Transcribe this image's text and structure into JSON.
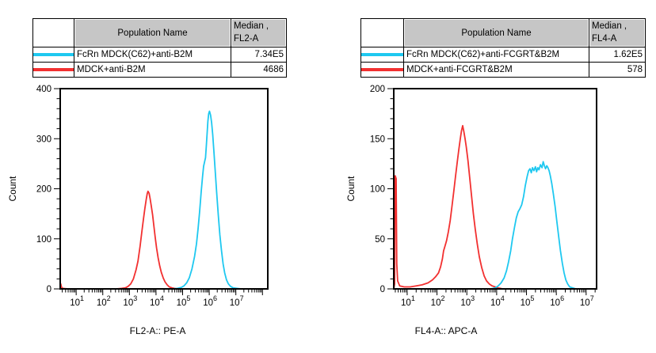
{
  "colors": {
    "cyan": "#1ec8f0",
    "red": "#f23030",
    "axis": "#000000",
    "table_header_bg": "#c6c6c6"
  },
  "panels": [
    {
      "table": {
        "header": {
          "swatch": "",
          "name": "Population Name",
          "median_line1": "Median ,",
          "median_line2": "FL2-A"
        },
        "rows": [
          {
            "color": "cyan",
            "name": "FcRn MDCK(C62)+anti-B2M",
            "median": "7.34E5"
          },
          {
            "color": "red",
            "name": "MDCK+anti-B2M",
            "median": "4686"
          }
        ]
      }
    },
    {
      "table": {
        "header": {
          "swatch": "",
          "name": "Population Name",
          "median_line1": "Median ,",
          "median_line2": "FL4-A"
        },
        "rows": [
          {
            "color": "cyan",
            "name": "FcRn MDCK(C62)+anti-FCGRT&B2M",
            "median": "1.62E5"
          },
          {
            "color": "red",
            "name": "MDCK+anti-FCGRT&B2M",
            "median": "578"
          }
        ]
      }
    }
  ],
  "chart_data": [
    {
      "type": "line",
      "title": "",
      "xlabel": "FL2-A:: PE-A",
      "ylabel": "Count",
      "xscale": "log",
      "xlim_log10": [
        0.4,
        8.2
      ],
      "x_labeled_decades": [
        1,
        2,
        3,
        4,
        5,
        6,
        7
      ],
      "ylim": [
        0,
        400
      ],
      "yticks": [
        0,
        100,
        200,
        300,
        400
      ],
      "y_major_step": 100,
      "y_minor_step": 20,
      "grid": false,
      "legend_position": "table-above",
      "series": [
        {
          "name": "FcRn MDCK(C62)+anti-B2M",
          "color": "cyan",
          "median": "7.34E5",
          "points": [
            [
              4.6,
              0
            ],
            [
              4.8,
              1
            ],
            [
              4.95,
              3
            ],
            [
              5.05,
              6
            ],
            [
              5.15,
              12
            ],
            [
              5.25,
              22
            ],
            [
              5.35,
              40
            ],
            [
              5.45,
              65
            ],
            [
              5.52,
              90
            ],
            [
              5.58,
              120
            ],
            [
              5.64,
              155
            ],
            [
              5.7,
              195
            ],
            [
              5.75,
              225
            ],
            [
              5.79,
              245
            ],
            [
              5.83,
              255
            ],
            [
              5.86,
              262
            ],
            [
              5.89,
              285
            ],
            [
              5.92,
              310
            ],
            [
              5.95,
              335
            ],
            [
              5.98,
              350
            ],
            [
              6.01,
              355
            ],
            [
              6.05,
              347
            ],
            [
              6.09,
              332
            ],
            [
              6.13,
              308
            ],
            [
              6.18,
              272
            ],
            [
              6.23,
              232
            ],
            [
              6.28,
              192
            ],
            [
              6.34,
              148
            ],
            [
              6.4,
              108
            ],
            [
              6.46,
              76
            ],
            [
              6.52,
              50
            ],
            [
              6.58,
              32
            ],
            [
              6.65,
              18
            ],
            [
              6.72,
              10
            ],
            [
              6.8,
              5
            ],
            [
              6.9,
              2
            ],
            [
              7.05,
              1
            ],
            [
              7.2,
              0
            ]
          ]
        },
        {
          "name": "MDCK+anti-B2M",
          "color": "red",
          "median": "4686",
          "points": [
            [
              0.4,
              0
            ],
            [
              0.42,
              10
            ],
            [
              0.45,
              3
            ],
            [
              0.5,
              1
            ],
            [
              0.7,
              0
            ],
            [
              2.5,
              0
            ],
            [
              2.7,
              1
            ],
            [
              2.85,
              2
            ],
            [
              2.95,
              5
            ],
            [
              3.05,
              10
            ],
            [
              3.15,
              20
            ],
            [
              3.25,
              38
            ],
            [
              3.32,
              55
            ],
            [
              3.4,
              85
            ],
            [
              3.47,
              115
            ],
            [
              3.53,
              140
            ],
            [
              3.58,
              160
            ],
            [
              3.63,
              178
            ],
            [
              3.67,
              190
            ],
            [
              3.7,
              195
            ],
            [
              3.74,
              191
            ],
            [
              3.78,
              180
            ],
            [
              3.82,
              166
            ],
            [
              3.87,
              148
            ],
            [
              3.92,
              126
            ],
            [
              3.97,
              103
            ],
            [
              4.02,
              82
            ],
            [
              4.08,
              62
            ],
            [
              4.14,
              46
            ],
            [
              4.2,
              33
            ],
            [
              4.27,
              22
            ],
            [
              4.34,
              14
            ],
            [
              4.42,
              8
            ],
            [
              4.5,
              4
            ],
            [
              4.6,
              2
            ],
            [
              4.7,
              1
            ],
            [
              4.85,
              0
            ]
          ]
        }
      ]
    },
    {
      "type": "line",
      "title": "",
      "xlabel": "FL4-A:: APC-A",
      "ylabel": "Count",
      "xscale": "log",
      "xlim_log10": [
        0.55,
        7.35
      ],
      "x_labeled_decades": [
        1,
        2,
        3,
        4,
        5,
        6,
        7
      ],
      "ylim": [
        0,
        200
      ],
      "yticks": [
        0,
        50,
        100,
        150,
        200
      ],
      "y_major_step": 50,
      "y_minor_step": 10,
      "grid": false,
      "legend_position": "table-above",
      "series": [
        {
          "name": "FcRn MDCK(C62)+anti-FCGRT&B2M",
          "color": "cyan",
          "median": "1.62E5",
          "points": [
            [
              3.8,
              0
            ],
            [
              3.95,
              1
            ],
            [
              4.05,
              3
            ],
            [
              4.15,
              6
            ],
            [
              4.25,
              11
            ],
            [
              4.33,
              18
            ],
            [
              4.4,
              27
            ],
            [
              4.47,
              38
            ],
            [
              4.53,
              50
            ],
            [
              4.6,
              62
            ],
            [
              4.66,
              71
            ],
            [
              4.72,
              77
            ],
            [
              4.78,
              80
            ],
            [
              4.84,
              84
            ],
            [
              4.9,
              92
            ],
            [
              4.96,
              103
            ],
            [
              5.02,
              112
            ],
            [
              5.07,
              118
            ],
            [
              5.12,
              120
            ],
            [
              5.16,
              116
            ],
            [
              5.2,
              121
            ],
            [
              5.25,
              118
            ],
            [
              5.3,
              122
            ],
            [
              5.34,
              117
            ],
            [
              5.38,
              121
            ],
            [
              5.42,
              119
            ],
            [
              5.47,
              124
            ],
            [
              5.52,
              121
            ],
            [
              5.56,
              127
            ],
            [
              5.6,
              123
            ],
            [
              5.64,
              120
            ],
            [
              5.68,
              123
            ],
            [
              5.72,
              121
            ],
            [
              5.76,
              118
            ],
            [
              5.8,
              113
            ],
            [
              5.85,
              105
            ],
            [
              5.9,
              95
            ],
            [
              5.96,
              82
            ],
            [
              6.02,
              67
            ],
            [
              6.08,
              52
            ],
            [
              6.14,
              38
            ],
            [
              6.2,
              26
            ],
            [
              6.26,
              16
            ],
            [
              6.32,
              9
            ],
            [
              6.38,
              5
            ],
            [
              6.45,
              2
            ],
            [
              6.55,
              1
            ],
            [
              6.65,
              0
            ]
          ]
        },
        {
          "name": "MDCK+anti-FCGRT&B2M",
          "color": "red",
          "median": "578",
          "points": [
            [
              0.55,
              0
            ],
            [
              0.58,
              5
            ],
            [
              0.6,
              113
            ],
            [
              0.63,
              110
            ],
            [
              0.65,
              25
            ],
            [
              0.68,
              8
            ],
            [
              0.75,
              3
            ],
            [
              0.9,
              2
            ],
            [
              1.1,
              2
            ],
            [
              1.3,
              3
            ],
            [
              1.5,
              4
            ],
            [
              1.7,
              6
            ],
            [
              1.85,
              9
            ],
            [
              1.95,
              12
            ],
            [
              2.05,
              16
            ],
            [
              2.12,
              22
            ],
            [
              2.18,
              30
            ],
            [
              2.22,
              38
            ],
            [
              2.26,
              42
            ],
            [
              2.32,
              48
            ],
            [
              2.38,
              57
            ],
            [
              2.44,
              68
            ],
            [
              2.5,
              82
            ],
            [
              2.56,
              97
            ],
            [
              2.62,
              112
            ],
            [
              2.68,
              127
            ],
            [
              2.73,
              139
            ],
            [
              2.78,
              150
            ],
            [
              2.82,
              158
            ],
            [
              2.86,
              163
            ],
            [
              2.9,
              157
            ],
            [
              2.94,
              150
            ],
            [
              2.98,
              142
            ],
            [
              3.04,
              128
            ],
            [
              3.1,
              110
            ],
            [
              3.16,
              92
            ],
            [
              3.22,
              75
            ],
            [
              3.28,
              60
            ],
            [
              3.35,
              45
            ],
            [
              3.42,
              32
            ],
            [
              3.5,
              21
            ],
            [
              3.58,
              13
            ],
            [
              3.66,
              8
            ],
            [
              3.75,
              5
            ],
            [
              3.85,
              3
            ],
            [
              3.95,
              2
            ],
            [
              4.05,
              1
            ],
            [
              4.2,
              0
            ]
          ]
        }
      ]
    }
  ]
}
